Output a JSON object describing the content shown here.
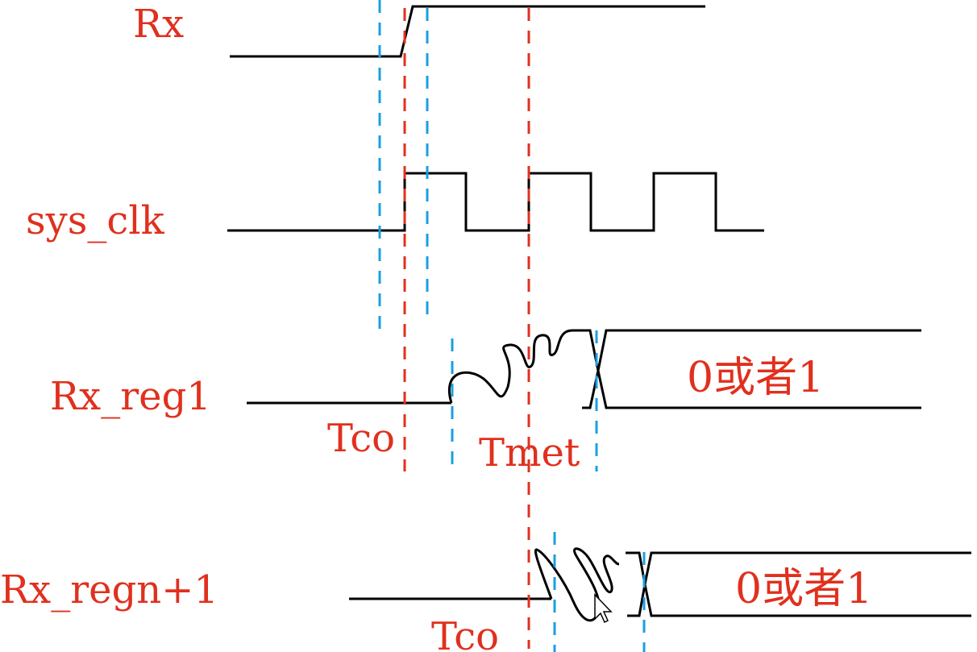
{
  "signals": {
    "rx": {
      "label": "Rx"
    },
    "sys_clk": {
      "label": "sys_clk"
    },
    "rx_reg1": {
      "label": "Rx_reg1",
      "state_text": "0或者1"
    },
    "rx_regn1": {
      "label": "Rx_regn+1",
      "state_text": "0或者1"
    }
  },
  "annotations": {
    "tco_1": "Tco",
    "tmet": "Tmet",
    "tco_2": "Tco"
  },
  "colors": {
    "label_red": "#e0301e",
    "marker_red": "#e0301e",
    "marker_blue": "#1a9fe0",
    "waveform": "#000000"
  }
}
